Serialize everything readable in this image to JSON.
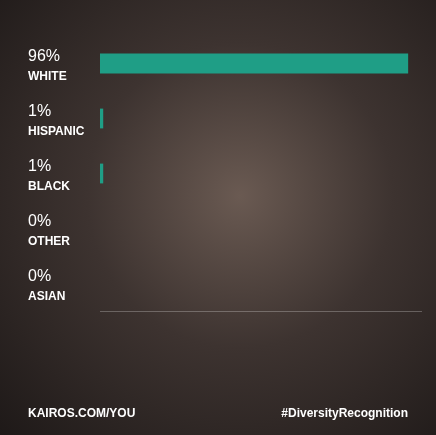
{
  "chart_data": {
    "type": "bar",
    "orientation": "horizontal",
    "categories": [
      "WHITE",
      "HISPANIC",
      "BLACK",
      "OTHER",
      "ASIAN"
    ],
    "values": [
      96,
      1,
      1,
      0,
      0
    ],
    "value_labels": [
      "96%",
      "1%",
      "1%",
      "0%",
      "0%"
    ],
    "data_labels": true,
    "color": "#1f9e86",
    "xlim": [
      0,
      100
    ],
    "grid": false,
    "tick_labels": false,
    "annotations": [
      "KAIROS.COM/YOU",
      "#DiversityRecognition"
    ]
  }
}
